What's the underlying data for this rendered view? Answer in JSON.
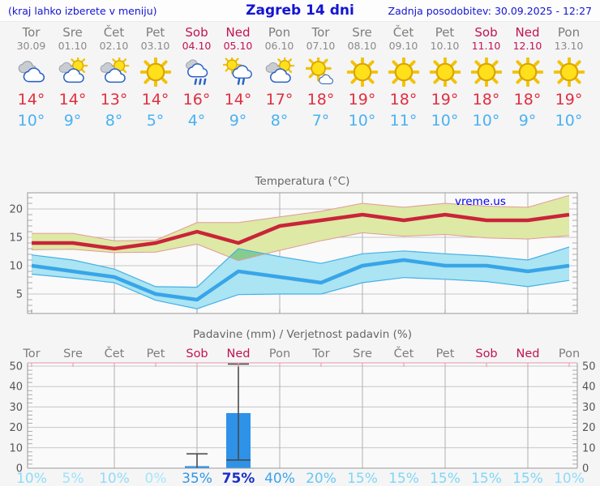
{
  "header": {
    "left_note": "(kraj lahko izberete v meniju)",
    "title": "Zagreb 14 dni",
    "last_update": "Zadnja posodobitev: 30.09.2025 - 12:27"
  },
  "watermark": "vreme.us",
  "colors": {
    "header_blue": "#1414d2",
    "weekday_gray": "#7d7d7d",
    "weekend_red": "#c2134f",
    "temp_max_text": "#e12f3f",
    "temp_min_text": "#4ab2ef",
    "max_line": "#c9243a",
    "max_band_fill": "#dde9a4",
    "max_band_edge": "#e59898",
    "min_line": "#38a5e8",
    "min_band_fill": "#abe4f2",
    "min_band_edge": "#44b0e8",
    "band_overlap": "#86cc90",
    "bar_fill": "#2e92e8",
    "whisker": "#4a4a4a",
    "grid_h": "#c6c6c6",
    "grid_v": "#b0b0b0",
    "axis_border": "#999999",
    "axis_label": "#555555",
    "chart_title": "#666666",
    "pink_axis": "#e9a9b9",
    "watermark_blue": "#0000ee",
    "plot_bg": "#fafafa"
  },
  "days": [
    {
      "name": "Tor",
      "date": "30.09",
      "weekend": false,
      "icon": "cloudy",
      "tmax": "14°",
      "tmin": "10°"
    },
    {
      "name": "Sre",
      "date": "01.10",
      "weekend": false,
      "icon": "partly-cloudy",
      "tmax": "14°",
      "tmin": "9°"
    },
    {
      "name": "Čet",
      "date": "02.10",
      "weekend": false,
      "icon": "partly-cloudy",
      "tmax": "13°",
      "tmin": "8°"
    },
    {
      "name": "Pet",
      "date": "03.10",
      "weekend": false,
      "icon": "sun",
      "tmax": "14°",
      "tmin": "5°"
    },
    {
      "name": "Sob",
      "date": "04.10",
      "weekend": true,
      "icon": "rain",
      "tmax": "16°",
      "tmin": "4°"
    },
    {
      "name": "Ned",
      "date": "05.10",
      "weekend": true,
      "icon": "sun-rain",
      "tmax": "14°",
      "tmin": "9°"
    },
    {
      "name": "Pon",
      "date": "06.10",
      "weekend": false,
      "icon": "partly-cloudy",
      "tmax": "17°",
      "tmin": "8°"
    },
    {
      "name": "Tor",
      "date": "07.10",
      "weekend": false,
      "icon": "sun-small-cloud",
      "tmax": "18°",
      "tmin": "7°"
    },
    {
      "name": "Sre",
      "date": "08.10",
      "weekend": false,
      "icon": "sun",
      "tmax": "19°",
      "tmin": "10°"
    },
    {
      "name": "Čet",
      "date": "09.10",
      "weekend": false,
      "icon": "sun",
      "tmax": "18°",
      "tmin": "11°"
    },
    {
      "name": "Pet",
      "date": "10.10",
      "weekend": false,
      "icon": "sun",
      "tmax": "19°",
      "tmin": "10°"
    },
    {
      "name": "Sob",
      "date": "11.10",
      "weekend": true,
      "icon": "sun",
      "tmax": "18°",
      "tmin": "10°"
    },
    {
      "name": "Ned",
      "date": "12.10",
      "weekend": true,
      "icon": "sun",
      "tmax": "18°",
      "tmin": "9°"
    },
    {
      "name": "Pon",
      "date": "13.10",
      "weekend": false,
      "icon": "sun",
      "tmax": "19°",
      "tmin": "10°"
    }
  ],
  "chart_data": [
    {
      "type": "line",
      "title": "Temperatura (°C)",
      "categories": [
        "Tor 30.09",
        "Sre 01.10",
        "Čet 02.10",
        "Pet 03.10",
        "Sob 04.10",
        "Ned 05.10",
        "Pon 06.10",
        "Tor 07.10",
        "Sre 08.10",
        "Čet 09.10",
        "Pet 10.10",
        "Sob 11.10",
        "Ned 12.10",
        "Pon 13.10"
      ],
      "ylabel": "°C",
      "ylim": [
        1.6,
        22.9
      ],
      "yticks": [
        5,
        10,
        15,
        20
      ],
      "grid": true,
      "legend_position": "none",
      "series": [
        {
          "name": "max temperatura",
          "values": [
            14,
            14,
            13,
            14,
            16,
            14,
            17,
            18,
            19,
            18,
            19,
            18,
            18,
            19
          ],
          "band_upper": [
            15.7,
            15.7,
            14.4,
            14.5,
            17.6,
            17.6,
            18.6,
            19.6,
            21.0,
            20.3,
            21.0,
            20.5,
            20.3,
            22.4
          ],
          "band_lower": [
            12.8,
            12.9,
            12.3,
            12.4,
            13.8,
            10.9,
            12.7,
            14.4,
            15.8,
            15.2,
            15.5,
            14.9,
            14.7,
            15.3
          ]
        },
        {
          "name": "min temperatura",
          "values": [
            10,
            9,
            8,
            5,
            4,
            9,
            8,
            7,
            10,
            11,
            10,
            10,
            9,
            10
          ],
          "band_upper": [
            11.9,
            11.0,
            9.4,
            6.3,
            6.2,
            13.0,
            11.6,
            10.4,
            12.1,
            12.6,
            12.1,
            11.7,
            11.0,
            13.3
          ],
          "band_lower": [
            8.5,
            7.8,
            7.0,
            3.9,
            2.4,
            4.9,
            5.0,
            5.0,
            7.0,
            7.9,
            7.6,
            7.2,
            6.3,
            7.4
          ]
        }
      ]
    },
    {
      "type": "bar",
      "title": "Padavine (mm) / Verjetnost padavin (%)",
      "categories": [
        "Tor",
        "Sre",
        "Čet",
        "Pet",
        "Sob",
        "Ned",
        "Pon",
        "Tor",
        "Sre",
        "Čet",
        "Pet",
        "Sob",
        "Ned",
        "Pon"
      ],
      "weekend_flags": [
        false,
        false,
        false,
        false,
        true,
        true,
        false,
        false,
        false,
        false,
        false,
        true,
        true,
        false
      ],
      "values_mm": [
        0,
        0,
        0,
        0,
        1,
        27,
        0,
        0,
        0,
        0,
        0,
        0,
        0,
        0
      ],
      "range_mm": [
        [
          0,
          0
        ],
        [
          0,
          0
        ],
        [
          0,
          0
        ],
        [
          0,
          0
        ],
        [
          0,
          7
        ],
        [
          4,
          51
        ],
        [
          0,
          0
        ],
        [
          0,
          0
        ],
        [
          0,
          0
        ],
        [
          0,
          0
        ],
        [
          0,
          0
        ],
        [
          0,
          0
        ],
        [
          0,
          0
        ],
        [
          0,
          0
        ]
      ],
      "probability_pct": [
        10,
        5,
        10,
        0,
        35,
        75,
        40,
        20,
        15,
        15,
        15,
        15,
        15,
        10
      ],
      "probability_colors": [
        "#8edcf6",
        "#9ce3f8",
        "#8edcf6",
        "#a5e7f9",
        "#2e96e4",
        "#1b2ec8",
        "#3ba4ea",
        "#63c9f0",
        "#7ed7f4",
        "#7ed7f4",
        "#7ed7f4",
        "#7ed7f4",
        "#7ed7f4",
        "#8edcf6"
      ],
      "ylim": [
        0,
        51.6
      ],
      "yticks": [
        0,
        10,
        20,
        30,
        40,
        50
      ],
      "grid": true
    }
  ]
}
